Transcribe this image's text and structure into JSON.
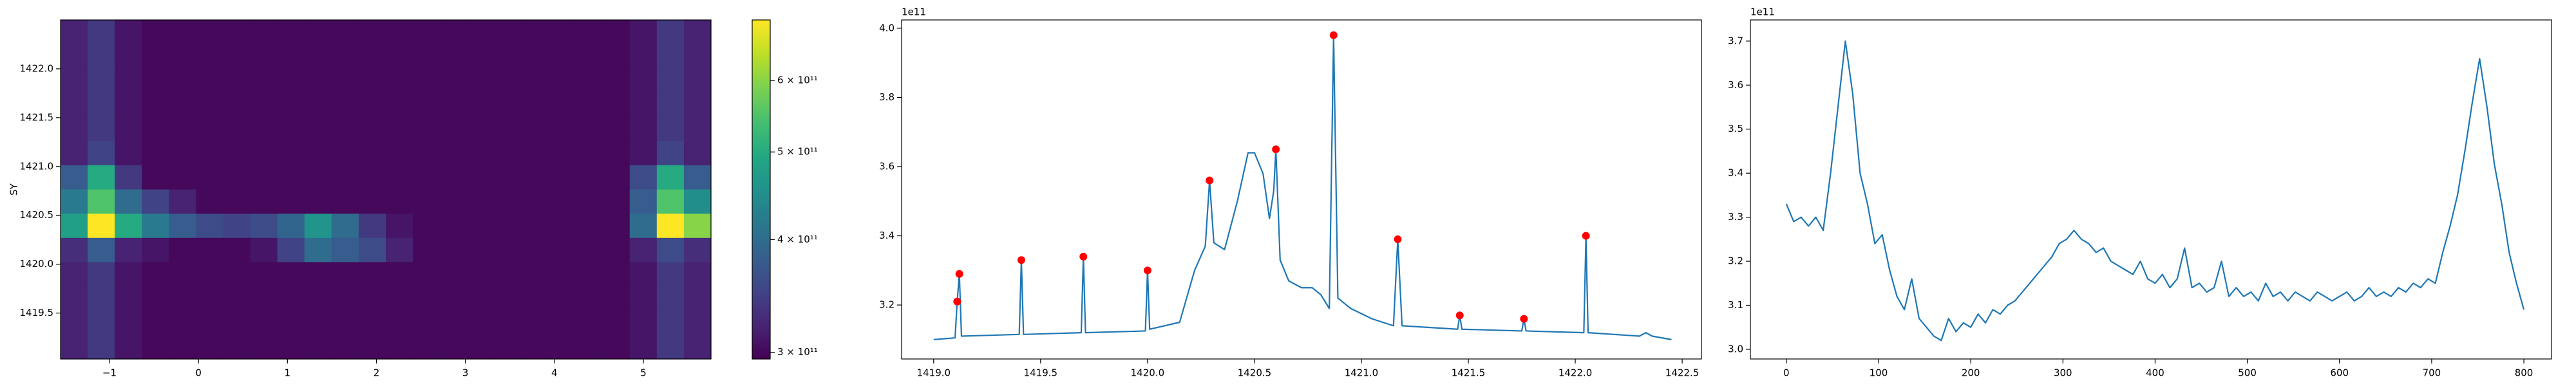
{
  "chart_data": [
    {
      "type": "heatmap",
      "ylabel": "SY",
      "xlim": [
        -1.55,
        5.76
      ],
      "ylim": [
        1419.03,
        1422.5
      ],
      "xticks": [
        {
          "value": -1,
          "label": "−1"
        },
        0,
        1,
        2,
        3,
        4,
        5
      ],
      "yticks": [
        1419.5,
        {
          "value": 1420,
          "label": "1420.0"
        },
        1420.5,
        {
          "value": 1421,
          "label": "1421.0"
        },
        1421.5,
        {
          "value": 1422,
          "label": "1422.0"
        }
      ],
      "colormap": "viridis",
      "cscale": "log",
      "clim": [
        295000000000.0,
        700000000000.0
      ],
      "cticks": [
        {
          "value": 300000000000.0,
          "label": "3 × 10¹¹"
        },
        {
          "value": 400000000000.0,
          "label": "4 × 10¹¹"
        },
        {
          "value": 500000000000.0,
          "label": "5 × 10¹¹"
        },
        {
          "value": 600000000000.0,
          "label": "6 × 10¹¹"
        }
      ],
      "z": [
        [
          320000000000.0,
          340000000000.0,
          310000000000.0,
          300000000000.0,
          300000000000.0,
          300000000000.0,
          300000000000.0,
          300000000000.0,
          300000000000.0,
          300000000000.0,
          300000000000.0,
          300000000000.0,
          300000000000.0,
          300000000000.0,
          300000000000.0,
          300000000000.0,
          300000000000.0,
          300000000000.0,
          300000000000.0,
          300000000000.0,
          300000000000.0,
          310000000000.0,
          340000000000.0,
          320000000000.0
        ],
        [
          320000000000.0,
          340000000000.0,
          310000000000.0,
          300000000000.0,
          300000000000.0,
          300000000000.0,
          300000000000.0,
          300000000000.0,
          300000000000.0,
          300000000000.0,
          300000000000.0,
          300000000000.0,
          300000000000.0,
          300000000000.0,
          300000000000.0,
          300000000000.0,
          300000000000.0,
          300000000000.0,
          300000000000.0,
          300000000000.0,
          300000000000.0,
          310000000000.0,
          340000000000.0,
          320000000000.0
        ],
        [
          320000000000.0,
          340000000000.0,
          310000000000.0,
          300000000000.0,
          300000000000.0,
          300000000000.0,
          300000000000.0,
          300000000000.0,
          300000000000.0,
          300000000000.0,
          300000000000.0,
          300000000000.0,
          300000000000.0,
          300000000000.0,
          300000000000.0,
          300000000000.0,
          300000000000.0,
          300000000000.0,
          300000000000.0,
          300000000000.0,
          300000000000.0,
          310000000000.0,
          340000000000.0,
          320000000000.0
        ],
        [
          320000000000.0,
          340000000000.0,
          310000000000.0,
          300000000000.0,
          300000000000.0,
          300000000000.0,
          300000000000.0,
          300000000000.0,
          300000000000.0,
          300000000000.0,
          300000000000.0,
          300000000000.0,
          300000000000.0,
          300000000000.0,
          300000000000.0,
          300000000000.0,
          300000000000.0,
          300000000000.0,
          300000000000.0,
          300000000000.0,
          300000000000.0,
          310000000000.0,
          340000000000.0,
          320000000000.0
        ],
        [
          320000000000.0,
          340000000000.0,
          310000000000.0,
          300000000000.0,
          300000000000.0,
          300000000000.0,
          300000000000.0,
          300000000000.0,
          300000000000.0,
          300000000000.0,
          300000000000.0,
          300000000000.0,
          300000000000.0,
          300000000000.0,
          300000000000.0,
          300000000000.0,
          300000000000.0,
          300000000000.0,
          300000000000.0,
          300000000000.0,
          300000000000.0,
          310000000000.0,
          340000000000.0,
          320000000000.0
        ],
        [
          320000000000.0,
          350000000000.0,
          310000000000.0,
          300000000000.0,
          300000000000.0,
          300000000000.0,
          300000000000.0,
          300000000000.0,
          300000000000.0,
          300000000000.0,
          300000000000.0,
          300000000000.0,
          300000000000.0,
          300000000000.0,
          300000000000.0,
          300000000000.0,
          300000000000.0,
          300000000000.0,
          300000000000.0,
          300000000000.0,
          300000000000.0,
          310000000000.0,
          350000000000.0,
          320000000000.0
        ],
        [
          380000000000.0,
          500000000000.0,
          340000000000.0,
          300000000000.0,
          300000000000.0,
          300000000000.0,
          300000000000.0,
          300000000000.0,
          300000000000.0,
          300000000000.0,
          300000000000.0,
          300000000000.0,
          300000000000.0,
          300000000000.0,
          300000000000.0,
          300000000000.0,
          300000000000.0,
          300000000000.0,
          300000000000.0,
          300000000000.0,
          300000000000.0,
          360000000000.0,
          500000000000.0,
          380000000000.0
        ],
        [
          420000000000.0,
          550000000000.0,
          400000000000.0,
          350000000000.0,
          320000000000.0,
          300000000000.0,
          300000000000.0,
          300000000000.0,
          300000000000.0,
          300000000000.0,
          300000000000.0,
          300000000000.0,
          300000000000.0,
          300000000000.0,
          300000000000.0,
          300000000000.0,
          300000000000.0,
          300000000000.0,
          300000000000.0,
          300000000000.0,
          300000000000.0,
          380000000000.0,
          550000000000.0,
          450000000000.0
        ],
        [
          480000000000.0,
          700000000000.0,
          500000000000.0,
          420000000000.0,
          380000000000.0,
          360000000000.0,
          350000000000.0,
          360000000000.0,
          390000000000.0,
          460000000000.0,
          400000000000.0,
          340000000000.0,
          310000000000.0,
          300000000000.0,
          300000000000.0,
          300000000000.0,
          300000000000.0,
          300000000000.0,
          300000000000.0,
          300000000000.0,
          300000000000.0,
          400000000000.0,
          700000000000.0,
          600000000000.0
        ],
        [
          330000000000.0,
          380000000000.0,
          320000000000.0,
          310000000000.0,
          300000000000.0,
          300000000000.0,
          300000000000.0,
          310000000000.0,
          350000000000.0,
          400000000000.0,
          380000000000.0,
          360000000000.0,
          320000000000.0,
          300000000000.0,
          300000000000.0,
          300000000000.0,
          300000000000.0,
          300000000000.0,
          300000000000.0,
          300000000000.0,
          300000000000.0,
          320000000000.0,
          360000000000.0,
          330000000000.0
        ],
        [
          320000000000.0,
          340000000000.0,
          310000000000.0,
          300000000000.0,
          300000000000.0,
          300000000000.0,
          300000000000.0,
          300000000000.0,
          300000000000.0,
          300000000000.0,
          300000000000.0,
          300000000000.0,
          300000000000.0,
          300000000000.0,
          300000000000.0,
          300000000000.0,
          300000000000.0,
          300000000000.0,
          300000000000.0,
          300000000000.0,
          300000000000.0,
          310000000000.0,
          340000000000.0,
          320000000000.0
        ],
        [
          320000000000.0,
          340000000000.0,
          310000000000.0,
          300000000000.0,
          300000000000.0,
          300000000000.0,
          300000000000.0,
          300000000000.0,
          300000000000.0,
          300000000000.0,
          300000000000.0,
          300000000000.0,
          300000000000.0,
          300000000000.0,
          300000000000.0,
          300000000000.0,
          300000000000.0,
          300000000000.0,
          300000000000.0,
          300000000000.0,
          300000000000.0,
          310000000000.0,
          340000000000.0,
          320000000000.0
        ],
        [
          320000000000.0,
          340000000000.0,
          310000000000.0,
          300000000000.0,
          300000000000.0,
          300000000000.0,
          300000000000.0,
          300000000000.0,
          300000000000.0,
          300000000000.0,
          300000000000.0,
          300000000000.0,
          300000000000.0,
          300000000000.0,
          300000000000.0,
          300000000000.0,
          300000000000.0,
          300000000000.0,
          300000000000.0,
          300000000000.0,
          300000000000.0,
          310000000000.0,
          340000000000.0,
          320000000000.0
        ],
        [
          320000000000.0,
          340000000000.0,
          310000000000.0,
          300000000000.0,
          300000000000.0,
          300000000000.0,
          300000000000.0,
          300000000000.0,
          300000000000.0,
          300000000000.0,
          300000000000.0,
          300000000000.0,
          300000000000.0,
          300000000000.0,
          300000000000.0,
          300000000000.0,
          300000000000.0,
          300000000000.0,
          300000000000.0,
          300000000000.0,
          300000000000.0,
          310000000000.0,
          340000000000.0,
          320000000000.0
        ]
      ]
    },
    {
      "type": "line",
      "offset_label": "1e11",
      "xlim": [
        1418.85,
        1422.59
      ],
      "ylim": [
        3.044,
        4.024
      ],
      "xticks": [
        {
          "value": 1419,
          "label": "1419.0"
        },
        1419.5,
        {
          "value": 1420,
          "label": "1420.0"
        },
        1420.5,
        {
          "value": 1421,
          "label": "1421.0"
        },
        1421.5,
        {
          "value": 1422,
          "label": "1422.0"
        },
        1422.5
      ],
      "yticks": [
        3.2,
        3.4,
        3.6,
        3.8,
        {
          "value": 4,
          "label": "4.0"
        }
      ],
      "series": [
        {
          "type": "line",
          "color": "#1f77b4",
          "x": [
            1419.0,
            1419.1,
            1419.11,
            1419.12,
            1419.13,
            1419.4,
            1419.41,
            1419.42,
            1419.69,
            1419.7,
            1419.71,
            1419.99,
            1420.0,
            1420.01,
            1420.15,
            1420.22,
            1420.27,
            1420.29,
            1420.31,
            1420.36,
            1420.42,
            1420.47,
            1420.5,
            1420.54,
            1420.57,
            1420.59,
            1420.6,
            1420.62,
            1420.66,
            1420.72,
            1420.77,
            1420.81,
            1420.85,
            1420.87,
            1420.89,
            1420.95,
            1421.05,
            1421.15,
            1421.17,
            1421.19,
            1421.45,
            1421.46,
            1421.47,
            1421.75,
            1421.76,
            1421.77,
            1422.04,
            1422.05,
            1422.06,
            1422.3,
            1422.33,
            1422.36,
            1422.45
          ],
          "values": [
            3.1,
            3.105,
            3.21,
            3.29,
            3.11,
            3.115,
            3.33,
            3.115,
            3.12,
            3.34,
            3.12,
            3.125,
            3.3,
            3.13,
            3.15,
            3.3,
            3.37,
            3.56,
            3.38,
            3.36,
            3.5,
            3.64,
            3.64,
            3.58,
            3.45,
            3.53,
            3.65,
            3.33,
            3.27,
            3.25,
            3.25,
            3.23,
            3.19,
            3.98,
            3.22,
            3.19,
            3.16,
            3.14,
            3.39,
            3.14,
            3.13,
            3.17,
            3.13,
            3.125,
            3.16,
            3.125,
            3.12,
            3.4,
            3.12,
            3.11,
            3.12,
            3.11,
            3.1
          ]
        },
        {
          "type": "scatter",
          "color": "#ff0000",
          "x": [
            1419.11,
            1419.12,
            1419.41,
            1419.7,
            1420.0,
            1420.29,
            1420.6,
            1420.87,
            1421.17,
            1421.46,
            1421.76,
            1422.05
          ],
          "values": [
            3.21,
            3.29,
            3.33,
            3.34,
            3.3,
            3.56,
            3.65,
            3.98,
            3.39,
            3.17,
            3.16,
            3.4
          ]
        }
      ]
    },
    {
      "type": "line",
      "offset_label": "1e11",
      "xlim": [
        -39,
        830
      ],
      "ylim": [
        2.978,
        3.748
      ],
      "xticks": [
        0,
        100,
        200,
        300,
        400,
        500,
        600,
        700,
        800
      ],
      "yticks": [
        {
          "value": 3,
          "label": "3.0"
        },
        3.1,
        3.2,
        3.3,
        3.4,
        3.5,
        3.6,
        3.7
      ],
      "series": [
        {
          "type": "line",
          "color": "#1f77b4",
          "x": [
            0,
            8,
            16,
            24,
            32,
            40,
            48,
            56,
            64,
            72,
            80,
            88,
            96,
            104,
            112,
            120,
            128,
            136,
            144,
            152,
            160,
            168,
            176,
            184,
            192,
            200,
            208,
            216,
            224,
            232,
            240,
            248,
            256,
            264,
            272,
            280,
            288,
            296,
            304,
            312,
            320,
            328,
            336,
            344,
            352,
            360,
            368,
            376,
            384,
            392,
            400,
            408,
            416,
            424,
            432,
            440,
            448,
            456,
            464,
            472,
            480,
            488,
            496,
            504,
            512,
            520,
            528,
            536,
            544,
            552,
            560,
            568,
            576,
            584,
            592,
            600,
            608,
            616,
            624,
            632,
            640,
            648,
            656,
            664,
            672,
            680,
            688,
            696,
            704,
            712,
            720,
            728,
            736,
            744,
            752,
            760,
            768,
            776,
            784,
            792,
            800
          ],
          "values": [
            3.33,
            3.29,
            3.3,
            3.28,
            3.3,
            3.27,
            3.4,
            3.55,
            3.7,
            3.58,
            3.4,
            3.33,
            3.24,
            3.26,
            3.18,
            3.12,
            3.09,
            3.16,
            3.07,
            3.05,
            3.03,
            3.02,
            3.07,
            3.04,
            3.06,
            3.05,
            3.08,
            3.06,
            3.09,
            3.08,
            3.1,
            3.11,
            3.13,
            3.15,
            3.17,
            3.19,
            3.21,
            3.24,
            3.25,
            3.27,
            3.25,
            3.24,
            3.22,
            3.23,
            3.2,
            3.19,
            3.18,
            3.17,
            3.2,
            3.16,
            3.15,
            3.17,
            3.14,
            3.16,
            3.23,
            3.14,
            3.15,
            3.13,
            3.14,
            3.2,
            3.12,
            3.14,
            3.12,
            3.13,
            3.11,
            3.15,
            3.12,
            3.13,
            3.11,
            3.13,
            3.12,
            3.11,
            3.13,
            3.12,
            3.11,
            3.12,
            3.13,
            3.11,
            3.12,
            3.14,
            3.12,
            3.13,
            3.12,
            3.14,
            3.13,
            3.15,
            3.14,
            3.16,
            3.15,
            3.22,
            3.28,
            3.35,
            3.45,
            3.56,
            3.66,
            3.55,
            3.42,
            3.33,
            3.22,
            3.15,
            3.09
          ]
        }
      ]
    }
  ]
}
